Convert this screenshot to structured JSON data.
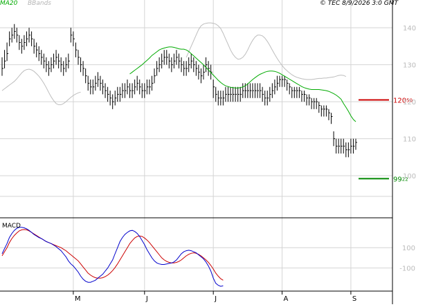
{
  "header": {
    "ma_label": "MA20",
    "bb_label": "BBands",
    "copyright": "© TEC 8/9/2026 3:0 GMT"
  },
  "colors": {
    "ma": "#00aa00",
    "bbands": "#bdbdbd",
    "ohlc": "#000000",
    "resistance": "#cc0000",
    "support": "#008800",
    "macd": "#0000cc",
    "signal": "#cc0000",
    "grid": "#d4d4d4"
  },
  "chart_data": [
    {
      "type": "ohlc",
      "title": "",
      "ylim": [
        89,
        146
      ],
      "y_ticks": [
        {
          "value": 140,
          "label": "140"
        },
        {
          "value": 130,
          "label": "130"
        },
        {
          "value": 120,
          "label": "120"
        },
        {
          "value": 110,
          "label": "110"
        },
        {
          "value": 100,
          "label": "100"
        }
      ],
      "x_ticks": [
        "M",
        "J",
        "J",
        "A",
        "S"
      ],
      "x_tick_index": [
        29,
        58,
        86,
        114,
        142
      ],
      "levels": [
        {
          "name": "resistance",
          "value": 120.5,
          "label": "120",
          "label_small": "50"
        },
        {
          "name": "support",
          "value": 99.22,
          "label": "99",
          "label_small": "22"
        }
      ],
      "series": [
        {
          "name": "price",
          "close": [
            129,
            131,
            133,
            137,
            138,
            139,
            138,
            136,
            135,
            136,
            137,
            138,
            137,
            135,
            134,
            133,
            132,
            131,
            130,
            129,
            130,
            131,
            132,
            131,
            130,
            129,
            130,
            131,
            138,
            137,
            134,
            132,
            130,
            129,
            127,
            125,
            124,
            124,
            125,
            126,
            125,
            124,
            123,
            122,
            121,
            120,
            121,
            122,
            122,
            123,
            123,
            124,
            123,
            123,
            124,
            125,
            124,
            123,
            123,
            124,
            124,
            125,
            127,
            129,
            130,
            131,
            132,
            132,
            131,
            130,
            131,
            132,
            131,
            130,
            129,
            129,
            130,
            131,
            130,
            129,
            128,
            127,
            128,
            130,
            129,
            128,
            124,
            122,
            121,
            121,
            121,
            122,
            122,
            122,
            122,
            122,
            122,
            122,
            123,
            123,
            123,
            123,
            123,
            123,
            123,
            123,
            122,
            121,
            121,
            122,
            123,
            124,
            125,
            126,
            126,
            126,
            125,
            124,
            123,
            123,
            123,
            123,
            122,
            122,
            121,
            121,
            120,
            120,
            120,
            119,
            118,
            118,
            118,
            117,
            116,
            110,
            108,
            108,
            108,
            108,
            107,
            107,
            108,
            108,
            109
          ],
          "high": [
            132,
            134,
            136,
            139,
            140,
            141,
            140,
            138,
            137,
            138,
            139,
            140,
            139,
            137,
            136,
            135,
            134,
            133,
            132,
            131,
            132,
            133,
            134,
            133,
            132,
            131,
            132,
            133,
            140,
            139,
            136,
            134,
            132,
            131,
            129,
            127,
            126,
            126,
            127,
            128,
            127,
            126,
            125,
            124,
            123,
            122,
            123,
            124,
            124,
            125,
            125,
            126,
            125,
            125,
            126,
            127,
            126,
            125,
            125,
            126,
            126,
            127,
            129,
            131,
            132,
            133,
            134,
            134,
            133,
            132,
            133,
            134,
            133,
            132,
            131,
            131,
            132,
            133,
            132,
            131,
            130,
            129,
            130,
            132,
            131,
            130,
            126,
            124,
            123,
            123,
            123,
            124,
            124,
            124,
            124,
            124,
            124,
            124,
            125,
            125,
            125,
            125,
            125,
            125,
            125,
            125,
            124,
            123,
            123,
            124,
            125,
            126,
            127,
            127,
            127,
            127,
            126,
            125,
            124,
            124,
            124,
            124,
            123,
            123,
            122,
            122,
            121,
            121,
            121,
            120,
            119,
            119,
            119,
            118,
            117,
            112,
            110,
            110,
            110,
            110,
            109,
            109,
            110,
            110,
            110
          ],
          "low": [
            127,
            129,
            131,
            135,
            136,
            137,
            136,
            134,
            133,
            134,
            135,
            136,
            135,
            133,
            132,
            131,
            130,
            129,
            128,
            127,
            128,
            129,
            130,
            129,
            128,
            127,
            128,
            129,
            136,
            135,
            132,
            130,
            128,
            127,
            125,
            123,
            122,
            122,
            123,
            124,
            123,
            122,
            121,
            120,
            119,
            118,
            119,
            120,
            120,
            121,
            121,
            122,
            121,
            121,
            122,
            123,
            122,
            121,
            121,
            122,
            122,
            123,
            125,
            127,
            128,
            129,
            130,
            130,
            129,
            128,
            129,
            130,
            129,
            128,
            127,
            127,
            128,
            129,
            128,
            127,
            126,
            125,
            126,
            128,
            127,
            126,
            121,
            120,
            119,
            119,
            119,
            120,
            120,
            120,
            120,
            120,
            120,
            120,
            121,
            121,
            121,
            121,
            121,
            121,
            121,
            121,
            120,
            119,
            119,
            120,
            121,
            122,
            123,
            124,
            124,
            124,
            123,
            122,
            121,
            121,
            121,
            121,
            120,
            120,
            119,
            119,
            118,
            118,
            118,
            117,
            116,
            116,
            116,
            115,
            114,
            108,
            106,
            106,
            106,
            106,
            105,
            105,
            106,
            106,
            107
          ]
        },
        {
          "name": "MA20",
          "values": [
            127.5,
            128,
            128.5,
            129,
            129.5,
            130,
            130.6,
            131.2,
            131.8,
            132.5,
            133,
            133.5,
            134,
            134.3,
            134.5,
            134.7,
            134.8,
            134.8,
            134.7,
            134.5,
            134.3,
            134.2,
            134.2,
            134,
            133.6,
            133,
            132.4,
            131.8,
            131.2,
            130.6,
            130,
            129.3,
            128.6,
            127.9,
            127.2,
            126.5,
            125.8,
            125.2,
            124.7,
            124.3,
            124.1,
            123.9,
            123.8,
            123.7,
            123.7,
            123.8,
            124,
            124.3,
            124.8,
            125.4,
            126,
            126.5,
            127,
            127.4,
            127.7,
            128,
            128.2,
            128.3,
            128.3,
            128.2,
            128,
            127.7,
            127.3,
            126.9,
            126.5,
            126.1,
            125.7,
            125.3,
            124.9,
            124.5,
            124.1,
            123.8,
            123.6,
            123.4,
            123.3,
            123.3,
            123.3,
            123.3,
            123.2,
            123.1,
            123,
            122.8,
            122.5,
            122.2,
            121.8,
            121.3,
            120.7,
            119.5,
            118.5,
            117.4,
            116.2,
            115.2,
            114.6
          ]
        },
        {
          "name": "BB upper",
          "values": [
            132,
            133.5,
            135,
            136.5,
            138,
            139.5,
            140.5,
            141,
            141.2,
            141.3,
            141.3,
            141.2,
            141,
            140.5,
            139.8,
            138.5,
            137,
            135.5,
            134,
            132.8,
            132,
            131.5,
            131.6,
            132,
            132.8,
            134,
            135.4,
            136.6,
            137.5,
            138,
            138,
            137.8,
            137.2,
            136.3,
            135.2,
            134,
            132.8,
            131.7,
            130.7,
            129.8,
            129,
            128.4,
            127.8,
            127.3,
            126.9,
            126.6,
            126.4,
            126.2,
            126.1,
            126,
            126,
            126,
            126.1,
            126.2,
            126.3,
            126.3,
            126.4,
            126.4,
            126.5,
            126.6,
            126.7,
            126.9,
            127.1,
            127.2,
            127.1,
            126.8
          ],
          "start_index": 75
        },
        {
          "name": "BB lower",
          "values": [
            123,
            123.5,
            124,
            124.5,
            125,
            125.5,
            126.2,
            127,
            127.8,
            128.4,
            128.7,
            128.8,
            128.6,
            128.2,
            127.6,
            126.9,
            126,
            125,
            123.8,
            122.5,
            121.3,
            120.3,
            119.5,
            119.2,
            119.2,
            119.5,
            120,
            120.6,
            121.2,
            121.7,
            122.1,
            122.4,
            122.6
          ],
          "start_index": 0
        }
      ]
    },
    {
      "type": "line",
      "title": "MACD",
      "ylim": [
        -320,
        380
      ],
      "y_ticks": [
        {
          "value": 100,
          "label": "100"
        },
        {
          "value": -100,
          "label": "-100"
        }
      ],
      "series": [
        {
          "name": "MACD",
          "values": [
            40,
            90,
            140,
            200,
            240,
            270,
            290,
            300,
            300,
            295,
            285,
            270,
            250,
            230,
            215,
            200,
            190,
            175,
            160,
            150,
            140,
            125,
            110,
            90,
            70,
            40,
            10,
            -30,
            -60,
            -80,
            -110,
            -140,
            -180,
            -210,
            -230,
            -240,
            -240,
            -230,
            -220,
            -200,
            -180,
            -160,
            -130,
            -100,
            -60,
            -20,
            40,
            100,
            160,
            200,
            230,
            250,
            265,
            270,
            260,
            240,
            210,
            170,
            130,
            80,
            40,
            0,
            -30,
            -50,
            -60,
            -65,
            -65,
            -60,
            -55,
            -50,
            -40,
            -20,
            10,
            40,
            60,
            70,
            75,
            70,
            60,
            50,
            30,
            10,
            -10,
            -40,
            -80,
            -130,
            -200,
            -250,
            -270,
            -280,
            -275
          ]
        },
        {
          "name": "Signal",
          "values": [
            20,
            60,
            100,
            150,
            190,
            220,
            245,
            265,
            275,
            278,
            275,
            265,
            250,
            235,
            220,
            205,
            190,
            175,
            160,
            150,
            140,
            130,
            120,
            110,
            100,
            85,
            70,
            50,
            30,
            10,
            -10,
            -30,
            -60,
            -90,
            -120,
            -150,
            -170,
            -185,
            -195,
            -200,
            -200,
            -195,
            -185,
            -170,
            -150,
            -125,
            -95,
            -60,
            -20,
            20,
            60,
            100,
            140,
            170,
            195,
            210,
            215,
            210,
            195,
            175,
            150,
            120,
            90,
            60,
            30,
            0,
            -20,
            -35,
            -45,
            -50,
            -50,
            -45,
            -35,
            -20,
            0,
            20,
            35,
            45,
            50,
            45,
            35,
            20,
            0,
            -20,
            -45,
            -75,
            -110,
            -150,
            -180,
            -205,
            -220
          ]
        }
      ]
    }
  ]
}
